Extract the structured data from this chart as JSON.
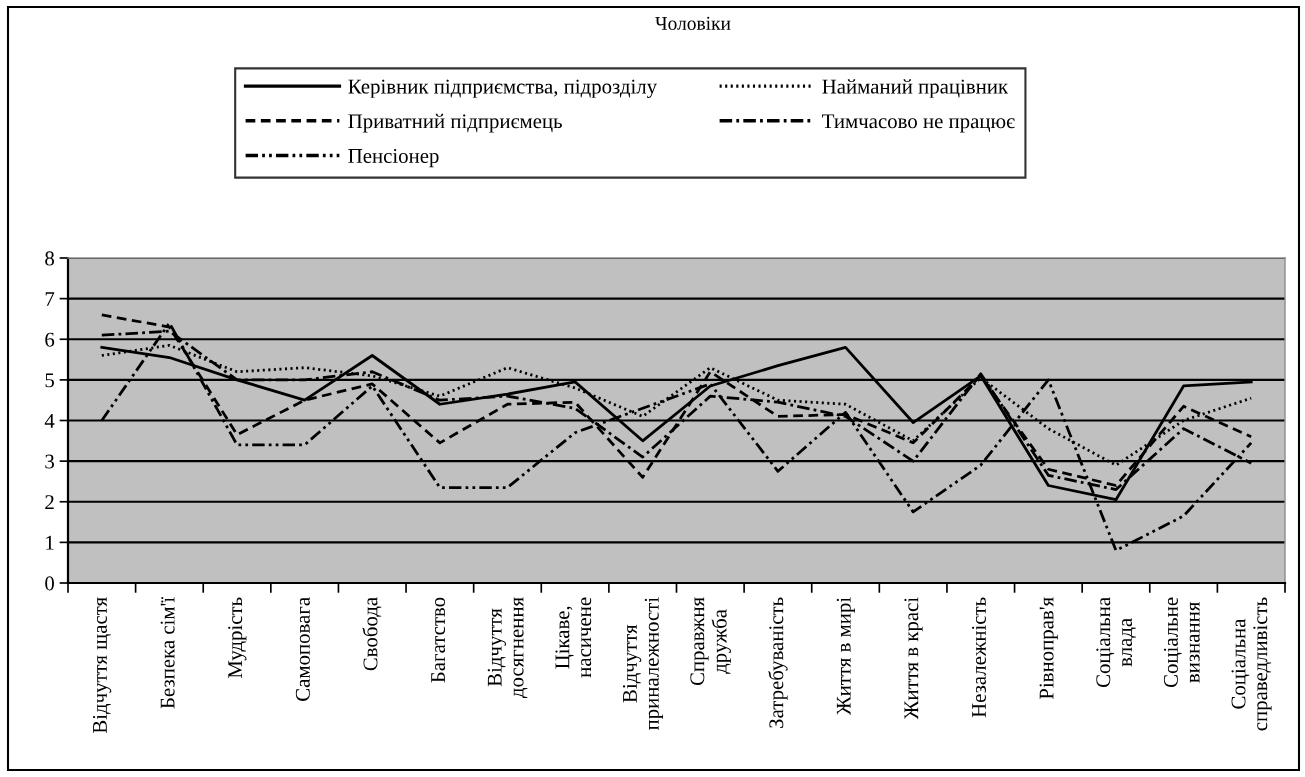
{
  "chart_data": {
    "type": "line",
    "title": "Чоловіки",
    "categories": [
      "Відчуття щастя",
      "Безпека сім'ї",
      "Мудрість",
      "Самоповага",
      "Свобода",
      "Багатство",
      "Відчуття досягнення",
      "Цікаве, насичене",
      "Відчуття приналежності",
      "Справжня дружба",
      "Затребуваність",
      "Життя в мирі",
      "Життя в красі",
      "Незалежність",
      "Рівноправ'я",
      "Соціальна влада",
      "Соціальне визнання",
      "Соціальна справедливість"
    ],
    "series": [
      {
        "name": "Керівник підприємства, підрозділу",
        "color": "#000000",
        "line_style": "solid",
        "values": [
          5.8,
          5.55,
          5.0,
          4.5,
          5.6,
          4.4,
          4.65,
          4.95,
          3.5,
          4.85,
          5.35,
          5.8,
          3.95,
          5.1,
          2.4,
          2.05,
          4.85,
          4.95
        ]
      },
      {
        "name": "Найманий працівник",
        "color": "#000000",
        "line_style": "dotted",
        "values": [
          5.6,
          5.85,
          5.2,
          5.3,
          5.1,
          4.6,
          5.3,
          4.8,
          4.1,
          5.3,
          4.5,
          4.4,
          3.5,
          5.05,
          3.8,
          2.9,
          4.0,
          4.55
        ]
      },
      {
        "name": "Приватний підприємець",
        "color": "#000000",
        "line_style": "dashed",
        "values": [
          6.6,
          6.3,
          3.65,
          4.5,
          4.9,
          3.45,
          4.4,
          4.45,
          2.6,
          5.2,
          4.1,
          4.15,
          3.45,
          5.1,
          2.8,
          2.4,
          4.35,
          3.6
        ]
      },
      {
        "name": "Тимчасово не працює",
        "color": "#000000",
        "line_style": "dashdot",
        "values": [
          6.1,
          6.2,
          5.0,
          5.0,
          5.2,
          4.5,
          4.6,
          4.3,
          3.1,
          4.6,
          4.45,
          4.1,
          3.0,
          5.15,
          2.65,
          2.3,
          3.8,
          2.95
        ]
      },
      {
        "name": "Пенсіонер",
        "color": "#000000",
        "line_style": "dashdotdot",
        "values": [
          4.0,
          6.4,
          3.4,
          3.4,
          4.85,
          2.35,
          2.35,
          3.7,
          4.3,
          4.9,
          2.75,
          4.2,
          1.75,
          2.9,
          5.0,
          0.8,
          1.65,
          3.45
        ]
      }
    ],
    "ylim": [
      0,
      8
    ],
    "yticks": [
      0,
      1,
      2,
      3,
      4,
      5,
      6,
      7,
      8
    ],
    "grid": "y",
    "legend": "top"
  }
}
